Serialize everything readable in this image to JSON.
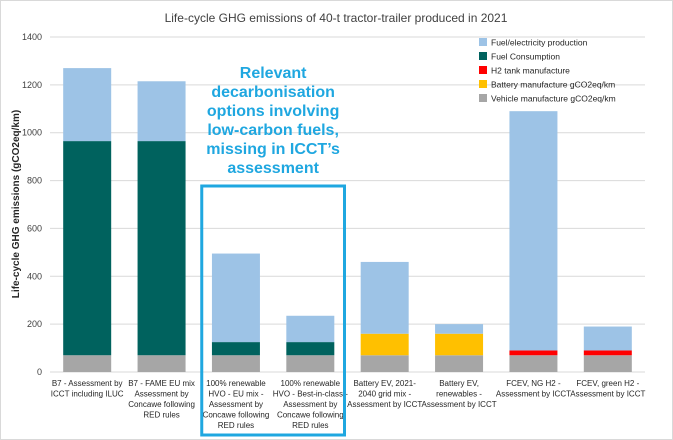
{
  "chart_data": {
    "type": "bar",
    "stacked": true,
    "title": "Life-cycle GHG emissions of 40-t tractor-trailer produced in 2021",
    "ylabel": "Life-cycle GHG emissions (gCO2eq/km)",
    "xlabel": "",
    "ylim": [
      0,
      1400
    ],
    "yticks": [
      0,
      200,
      400,
      600,
      800,
      1000,
      1200,
      1400
    ],
    "grid": true,
    "legend_position": "top-right",
    "categories": [
      [
        "B7 - Assessment by",
        "ICCT including ILUC"
      ],
      [
        "B7 - FAME EU mix",
        "Assessment by",
        "Concawe following",
        "RED rules"
      ],
      [
        "100% renewable",
        "HVO - EU mix -",
        "Assessment by",
        "Concawe following",
        "RED rules"
      ],
      [
        "100% renewable",
        "HVO - Best-in-class -",
        "Assessment by",
        "Concawe following",
        "RED rules"
      ],
      [
        "Battery EV, 2021-",
        "2040 grid mix -",
        "Assessment by ICCT"
      ],
      [
        "Battery EV,",
        "renewables -",
        "Assessment by ICCT"
      ],
      [
        "FCEV, NG H2 -",
        "Assessment by ICCT"
      ],
      [
        "FCEV, green H2 -",
        "Assessment by ICCT"
      ]
    ],
    "series": [
      {
        "name": "Vehicle manufacture gCO2eq/km",
        "color": "#a6a6a6",
        "values": [
          70,
          70,
          70,
          70,
          70,
          70,
          70,
          70
        ]
      },
      {
        "name": "Battery manufacture gCO2eq/km",
        "color": "#ffc000",
        "values": [
          0,
          0,
          0,
          0,
          90,
          90,
          0,
          0
        ]
      },
      {
        "name": "H2 tank manufacture",
        "color": "#ff0000",
        "values": [
          0,
          0,
          0,
          0,
          0,
          0,
          20,
          20
        ]
      },
      {
        "name": "Fuel Consumption",
        "color": "#00625e",
        "values": [
          895,
          895,
          55,
          55,
          0,
          0,
          0,
          0
        ]
      },
      {
        "name": "Fuel/electricity production",
        "color": "#9dc3e6",
        "values": [
          305,
          250,
          370,
          110,
          300,
          40,
          1000,
          100
        ]
      }
    ],
    "legend_order": [
      4,
      3,
      2,
      1,
      0
    ],
    "annotation": {
      "lines": [
        "Relevant",
        "decarbonisation",
        "options involving",
        "low-carbon fuels,",
        "missing in ICCT’s",
        "assessment"
      ],
      "color": "#1fa7e0",
      "highlight_categories": [
        2,
        3
      ]
    }
  }
}
